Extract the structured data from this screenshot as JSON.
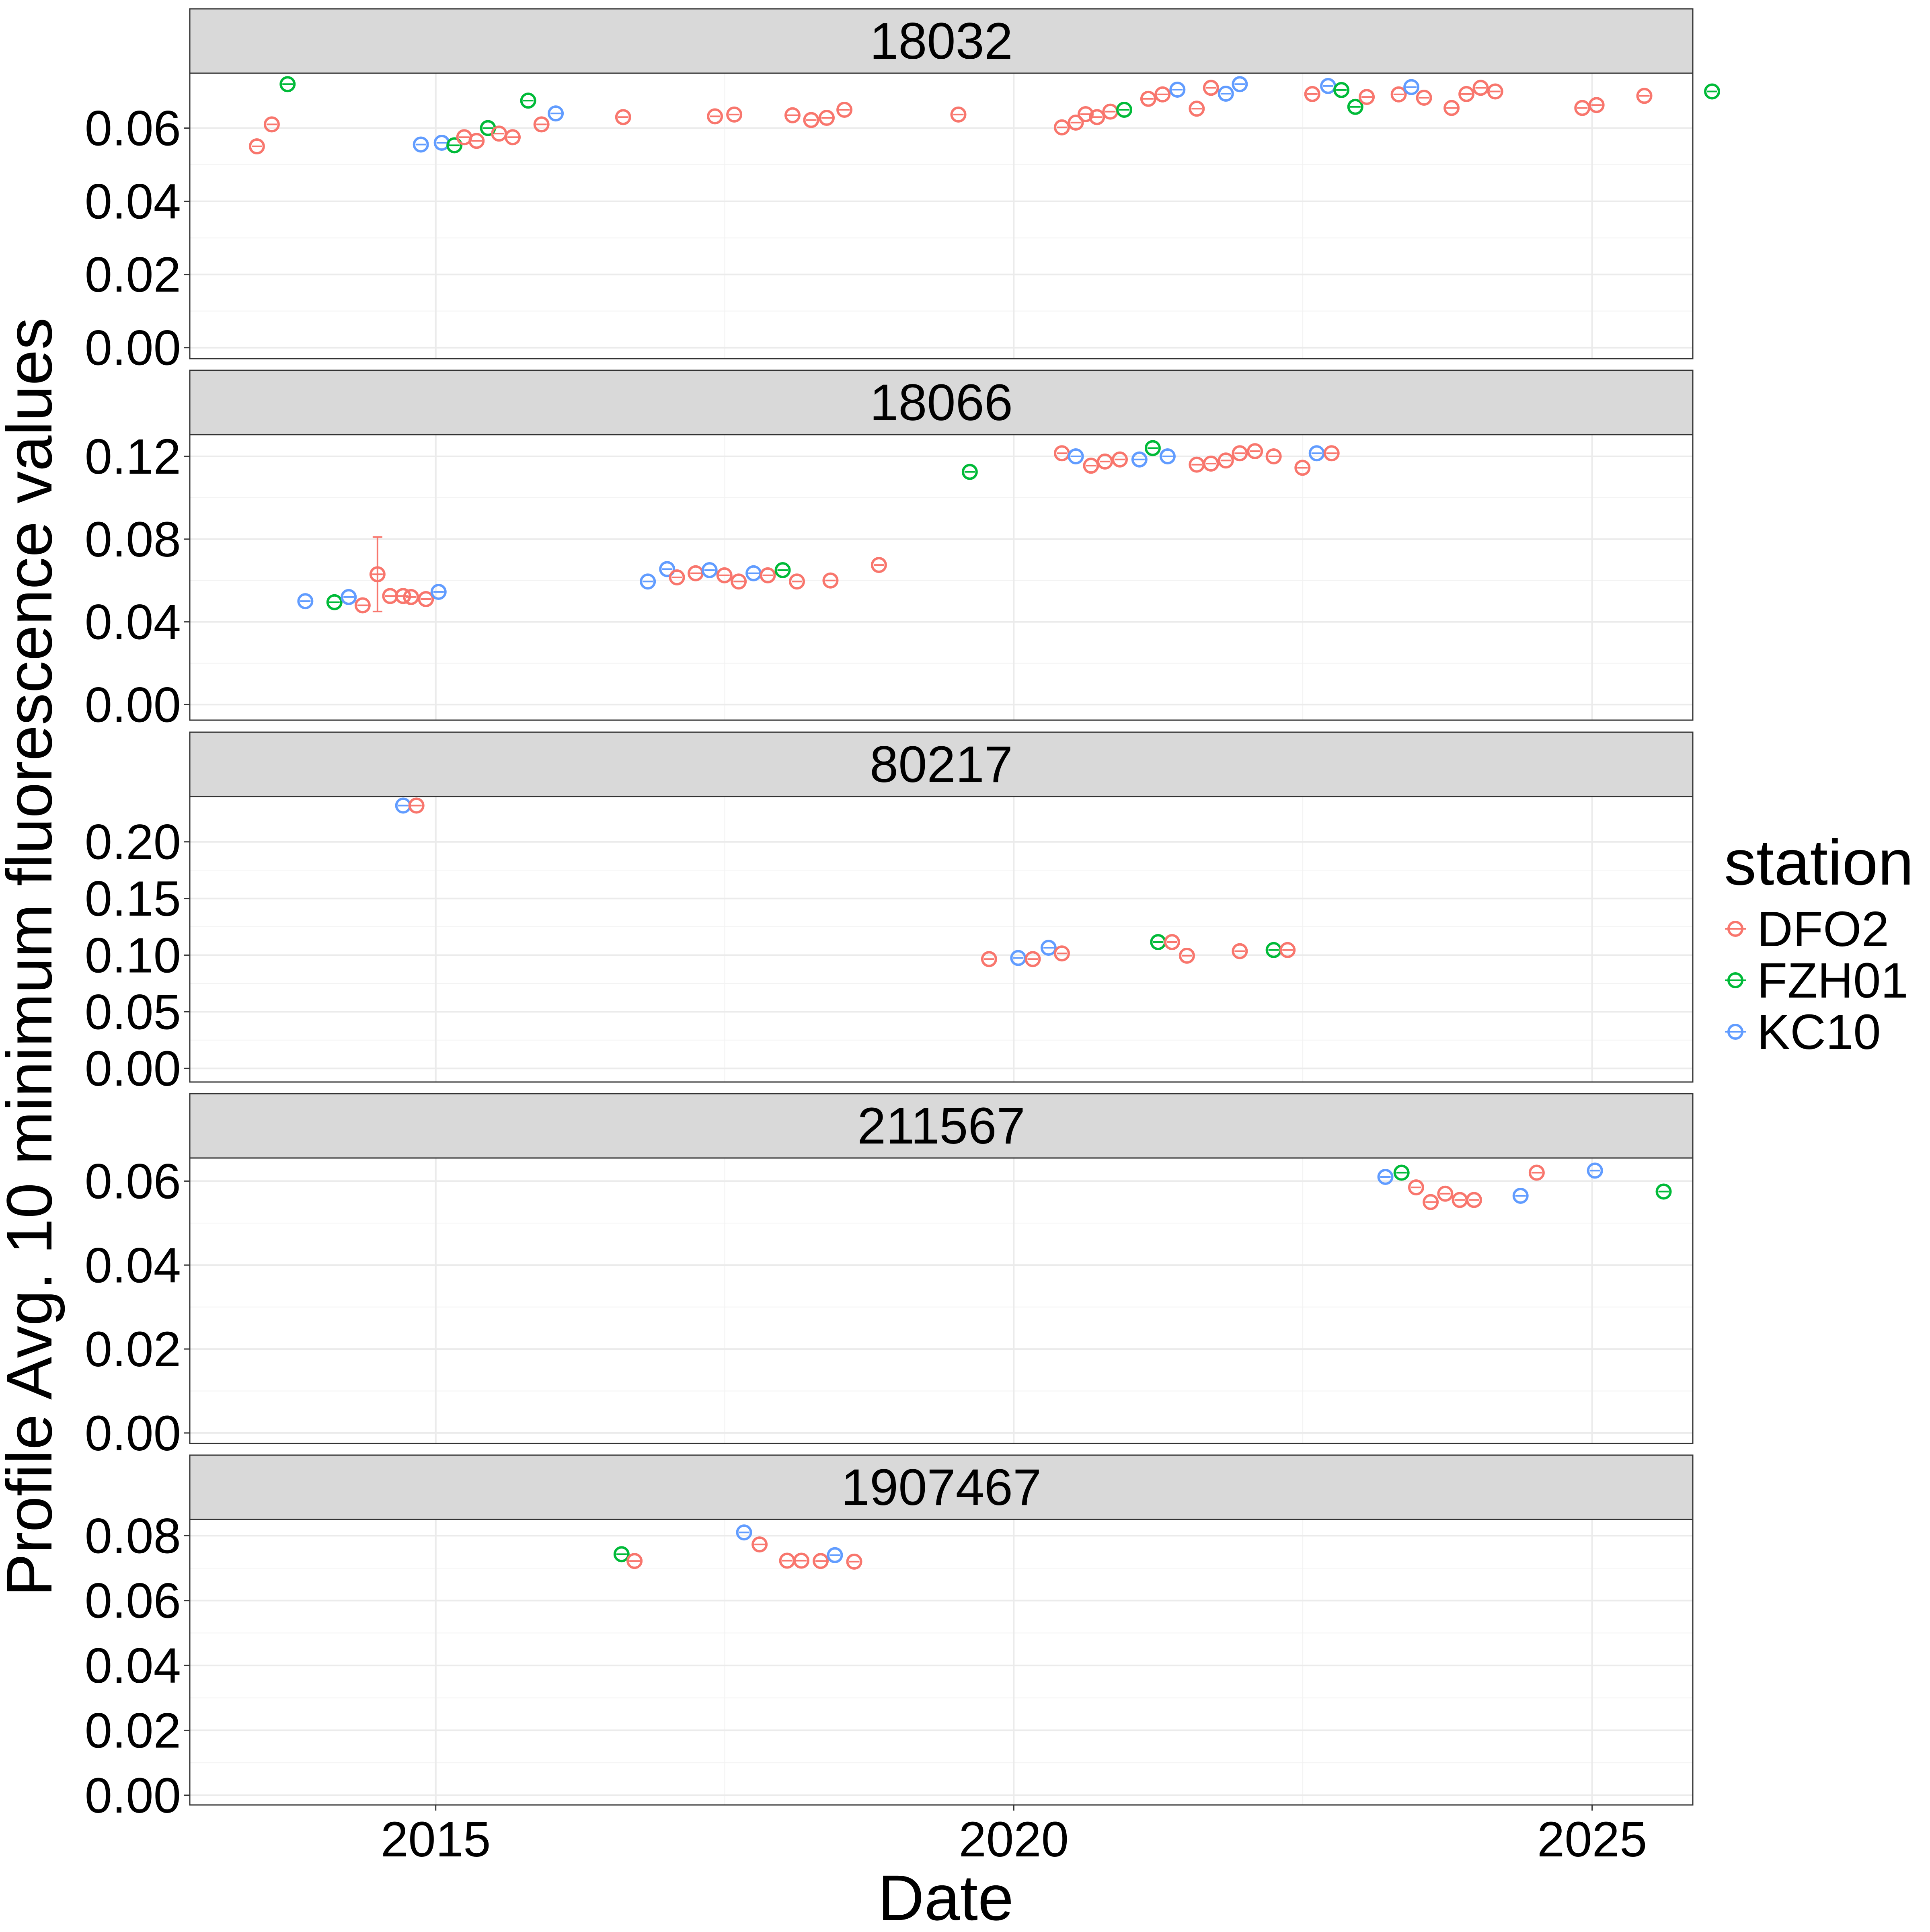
{
  "chart_data": {
    "type": "scatter",
    "xlabel": "Date",
    "ylabel": "Profile Avg. 10 minimum fluorescence values",
    "legend": {
      "title": "station",
      "placement": "right"
    },
    "series": [
      {
        "name": "DFO2",
        "color": "#F8766D"
      },
      {
        "name": "FZH01",
        "color": "#00BA38"
      },
      {
        "name": "KC10",
        "color": "#619CFF"
      }
    ],
    "x_axis": {
      "min": "2012-11-15",
      "max": "2025-11-15",
      "ticks": [
        "2015-01-01",
        "2020-01-01",
        "2025-01-01"
      ],
      "tick_labels": [
        "2015",
        "2020",
        "2025"
      ]
    },
    "grid": true,
    "panels": [
      {
        "title": "18032",
        "ylim": [
          -0.003,
          0.075
        ],
        "yticks": [
          0.0,
          0.02,
          0.04,
          0.06
        ],
        "ytick_labels": [
          "0.00",
          "0.02",
          "0.04",
          "0.06"
        ],
        "points": [
          {
            "station": "DFO2",
            "date": "2013-06-15",
            "y": 0.055
          },
          {
            "station": "DFO2",
            "date": "2013-08-01",
            "y": 0.061
          },
          {
            "station": "FZH01",
            "date": "2013-09-20",
            "y": 0.072
          },
          {
            "station": "KC10",
            "date": "2014-11-15",
            "y": 0.0555
          },
          {
            "station": "KC10",
            "date": "2015-01-20",
            "y": 0.056
          },
          {
            "station": "FZH01",
            "date": "2015-03-01",
            "y": 0.0553
          },
          {
            "station": "DFO2",
            "date": "2015-04-01",
            "y": 0.0575
          },
          {
            "station": "DFO2",
            "date": "2015-05-10",
            "y": 0.0565
          },
          {
            "station": "FZH01",
            "date": "2015-06-15",
            "y": 0.06
          },
          {
            "station": "DFO2",
            "date": "2015-07-20",
            "y": 0.0585
          },
          {
            "station": "DFO2",
            "date": "2015-09-01",
            "y": 0.0575
          },
          {
            "station": "FZH01",
            "date": "2015-10-20",
            "y": 0.0675
          },
          {
            "station": "DFO2",
            "date": "2015-12-01",
            "y": 0.061
          },
          {
            "station": "KC10",
            "date": "2016-01-15",
            "y": 0.064
          },
          {
            "station": "DFO2",
            "date": "2016-08-15",
            "y": 0.063
          },
          {
            "station": "DFO2",
            "date": "2017-06-01",
            "y": 0.0632
          },
          {
            "station": "DFO2",
            "date": "2017-08-01",
            "y": 0.0637
          },
          {
            "station": "DFO2",
            "date": "2018-02-01",
            "y": 0.0635
          },
          {
            "station": "DFO2",
            "date": "2018-04-01",
            "y": 0.0622
          },
          {
            "station": "DFO2",
            "date": "2018-05-20",
            "y": 0.0628
          },
          {
            "station": "DFO2",
            "date": "2018-07-15",
            "y": 0.065
          },
          {
            "station": "DFO2",
            "date": "2019-07-10",
            "y": 0.0637
          },
          {
            "station": "DFO2",
            "date": "2020-06-01",
            "y": 0.0602
          },
          {
            "station": "DFO2",
            "date": "2020-07-15",
            "y": 0.0615
          },
          {
            "station": "DFO2",
            "date": "2020-08-15",
            "y": 0.0638
          },
          {
            "station": "DFO2",
            "date": "2020-09-20",
            "y": 0.063
          },
          {
            "station": "DFO2",
            "date": "2020-11-01",
            "y": 0.0645
          },
          {
            "station": "FZH01",
            "date": "2020-12-15",
            "y": 0.065
          },
          {
            "station": "DFO2",
            "date": "2021-03-01",
            "y": 0.068
          },
          {
            "station": "DFO2",
            "date": "2021-04-15",
            "y": 0.0692
          },
          {
            "station": "KC10",
            "date": "2021-06-01",
            "y": 0.0705
          },
          {
            "station": "DFO2",
            "date": "2021-08-01",
            "y": 0.0653
          },
          {
            "station": "DFO2",
            "date": "2021-09-15",
            "y": 0.071
          },
          {
            "station": "KC10",
            "date": "2021-11-01",
            "y": 0.0694
          },
          {
            "station": "KC10",
            "date": "2021-12-15",
            "y": 0.072
          },
          {
            "station": "DFO2",
            "date": "2022-08-01",
            "y": 0.0693
          },
          {
            "station": "KC10",
            "date": "2022-09-20",
            "y": 0.0715
          },
          {
            "station": "FZH01",
            "date": "2022-11-01",
            "y": 0.0704
          },
          {
            "station": "FZH01",
            "date": "2022-12-15",
            "y": 0.0658
          },
          {
            "station": "DFO2",
            "date": "2023-01-20",
            "y": 0.0685
          },
          {
            "station": "DFO2",
            "date": "2023-05-01",
            "y": 0.0692
          },
          {
            "station": "KC10",
            "date": "2023-06-10",
            "y": 0.0712
          },
          {
            "station": "DFO2",
            "date": "2023-07-20",
            "y": 0.0683
          },
          {
            "station": "DFO2",
            "date": "2023-10-15",
            "y": 0.0655
          },
          {
            "station": "DFO2",
            "date": "2023-12-01",
            "y": 0.0693
          },
          {
            "station": "DFO2",
            "date": "2024-01-15",
            "y": 0.071
          },
          {
            "station": "DFO2",
            "date": "2024-03-01",
            "y": 0.07
          },
          {
            "station": "DFO2",
            "date": "2024-12-01",
            "y": 0.0655
          },
          {
            "station": "DFO2",
            "date": "2025-01-15",
            "y": 0.0663
          },
          {
            "station": "DFO2",
            "date": "2025-06-15",
            "y": 0.0688
          },
          {
            "station": "FZH01",
            "date": "2026-01-15",
            "y": 0.07
          }
        ]
      },
      {
        "title": "18066",
        "ylim": [
          -0.0075,
          0.1305
        ],
        "yticks": [
          0.0,
          0.04,
          0.08,
          0.12
        ],
        "ytick_labels": [
          "0.00",
          "0.04",
          "0.08",
          "0.12"
        ],
        "points": [
          {
            "station": "KC10",
            "date": "2013-11-15",
            "y": 0.05
          },
          {
            "station": "FZH01",
            "date": "2014-02-15",
            "y": 0.0495
          },
          {
            "station": "KC10",
            "date": "2014-04-01",
            "y": 0.052
          },
          {
            "station": "DFO2",
            "date": "2014-05-15",
            "y": 0.048
          },
          {
            "station": "DFO2",
            "date": "2014-07-01",
            "y": 0.063,
            "err": [
              0.045,
              0.081
            ]
          },
          {
            "station": "DFO2",
            "date": "2014-08-10",
            "y": 0.0525
          },
          {
            "station": "DFO2",
            "date": "2014-09-20",
            "y": 0.0525
          },
          {
            "station": "DFO2",
            "date": "2014-10-15",
            "y": 0.052
          },
          {
            "station": "DFO2",
            "date": "2014-12-01",
            "y": 0.051
          },
          {
            "station": "KC10",
            "date": "2015-01-10",
            "y": 0.0545
          },
          {
            "station": "KC10",
            "date": "2016-11-01",
            "y": 0.0595
          },
          {
            "station": "KC10",
            "date": "2017-01-01",
            "y": 0.0655
          },
          {
            "station": "DFO2",
            "date": "2017-02-01",
            "y": 0.0615
          },
          {
            "station": "DFO2",
            "date": "2017-04-01",
            "y": 0.0635
          },
          {
            "station": "KC10",
            "date": "2017-05-15",
            "y": 0.065
          },
          {
            "station": "DFO2",
            "date": "2017-07-01",
            "y": 0.0625
          },
          {
            "station": "DFO2",
            "date": "2017-08-15",
            "y": 0.0595
          },
          {
            "station": "KC10",
            "date": "2017-10-01",
            "y": 0.0635
          },
          {
            "station": "DFO2",
            "date": "2017-11-15",
            "y": 0.0625
          },
          {
            "station": "FZH01",
            "date": "2018-01-01",
            "y": 0.065
          },
          {
            "station": "DFO2",
            "date": "2018-02-15",
            "y": 0.0595
          },
          {
            "station": "DFO2",
            "date": "2018-06-01",
            "y": 0.06
          },
          {
            "station": "DFO2",
            "date": "2018-11-01",
            "y": 0.0675
          },
          {
            "station": "FZH01",
            "date": "2019-08-15",
            "y": 0.1125
          },
          {
            "station": "DFO2",
            "date": "2020-06-01",
            "y": 0.1215
          },
          {
            "station": "KC10",
            "date": "2020-07-15",
            "y": 0.12
          },
          {
            "station": "DFO2",
            "date": "2020-09-01",
            "y": 0.1155
          },
          {
            "station": "DFO2",
            "date": "2020-10-15",
            "y": 0.1175
          },
          {
            "station": "DFO2",
            "date": "2020-12-01",
            "y": 0.1185
          },
          {
            "station": "KC10",
            "date": "2021-02-01",
            "y": 0.1185
          },
          {
            "station": "FZH01",
            "date": "2021-03-15",
            "y": 0.124
          },
          {
            "station": "KC10",
            "date": "2021-05-01",
            "y": 0.12
          },
          {
            "station": "DFO2",
            "date": "2021-08-01",
            "y": 0.116
          },
          {
            "station": "DFO2",
            "date": "2021-09-15",
            "y": 0.1165
          },
          {
            "station": "DFO2",
            "date": "2021-11-01",
            "y": 0.118
          },
          {
            "station": "DFO2",
            "date": "2021-12-15",
            "y": 0.1215
          },
          {
            "station": "DFO2",
            "date": "2022-02-01",
            "y": 0.1225
          },
          {
            "station": "DFO2",
            "date": "2022-04-01",
            "y": 0.12
          },
          {
            "station": "DFO2",
            "date": "2022-07-01",
            "y": 0.1145
          },
          {
            "station": "KC10",
            "date": "2022-08-15",
            "y": 0.1215
          },
          {
            "station": "DFO2",
            "date": "2022-10-01",
            "y": 0.1215
          }
        ]
      },
      {
        "title": "80217",
        "ylim": [
          -0.012,
          0.24
        ],
        "yticks": [
          0.0,
          0.05,
          0.1,
          0.15,
          0.2
        ],
        "ytick_labels": [
          "0.00",
          "0.05",
          "0.10",
          "0.15",
          "0.20"
        ],
        "points": [
          {
            "station": "KC10",
            "date": "2014-09-20",
            "y": 0.232
          },
          {
            "station": "DFO2",
            "date": "2014-11-01",
            "y": 0.232
          },
          {
            "station": "DFO2",
            "date": "2019-10-15",
            "y": 0.0965
          },
          {
            "station": "KC10",
            "date": "2020-01-15",
            "y": 0.0975
          },
          {
            "station": "DFO2",
            "date": "2020-03-01",
            "y": 0.0965
          },
          {
            "station": "KC10",
            "date": "2020-04-20",
            "y": 0.1065
          },
          {
            "station": "DFO2",
            "date": "2020-06-01",
            "y": 0.1015
          },
          {
            "station": "FZH01",
            "date": "2021-04-01",
            "y": 0.1115
          },
          {
            "station": "DFO2",
            "date": "2021-05-15",
            "y": 0.1115
          },
          {
            "station": "DFO2",
            "date": "2021-07-01",
            "y": 0.0995
          },
          {
            "station": "DFO2",
            "date": "2021-12-15",
            "y": 0.1035
          },
          {
            "station": "FZH01",
            "date": "2022-04-01",
            "y": 0.1045
          },
          {
            "station": "DFO2",
            "date": "2022-05-15",
            "y": 0.1045
          }
        ]
      },
      {
        "title": "211567",
        "ylim": [
          -0.0025,
          0.0655
        ],
        "yticks": [
          0.0,
          0.02,
          0.04,
          0.06
        ],
        "ytick_labels": [
          "0.00",
          "0.02",
          "0.04",
          "0.06"
        ],
        "points": [
          {
            "station": "KC10",
            "date": "2023-03-20",
            "y": 0.061
          },
          {
            "station": "FZH01",
            "date": "2023-05-10",
            "y": 0.062
          },
          {
            "station": "DFO2",
            "date": "2023-06-25",
            "y": 0.0585
          },
          {
            "station": "DFO2",
            "date": "2023-08-10",
            "y": 0.055
          },
          {
            "station": "DFO2",
            "date": "2023-09-25",
            "y": 0.057
          },
          {
            "station": "DFO2",
            "date": "2023-11-10",
            "y": 0.0555
          },
          {
            "station": "DFO2",
            "date": "2023-12-25",
            "y": 0.0555
          },
          {
            "station": "KC10",
            "date": "2024-05-20",
            "y": 0.0565
          },
          {
            "station": "DFO2",
            "date": "2024-07-10",
            "y": 0.062
          },
          {
            "station": "KC10",
            "date": "2025-01-10",
            "y": 0.0625
          },
          {
            "station": "FZH01",
            "date": "2025-08-15",
            "y": 0.0575
          }
        ]
      },
      {
        "title": "1907467",
        "ylim": [
          -0.003,
          0.085
        ],
        "yticks": [
          0.0,
          0.02,
          0.04,
          0.06,
          0.08
        ],
        "ytick_labels": [
          "0.00",
          "0.02",
          "0.04",
          "0.06",
          "0.08"
        ],
        "points": [
          {
            "station": "FZH01",
            "date": "2016-08-10",
            "y": 0.0743
          },
          {
            "station": "DFO2",
            "date": "2016-09-20",
            "y": 0.0722
          },
          {
            "station": "KC10",
            "date": "2017-09-01",
            "y": 0.081
          },
          {
            "station": "DFO2",
            "date": "2017-10-20",
            "y": 0.0773
          },
          {
            "station": "DFO2",
            "date": "2018-01-15",
            "y": 0.0723
          },
          {
            "station": "DFO2",
            "date": "2018-03-01",
            "y": 0.0723
          },
          {
            "station": "DFO2",
            "date": "2018-05-01",
            "y": 0.0722
          },
          {
            "station": "KC10",
            "date": "2018-06-15",
            "y": 0.074
          },
          {
            "station": "DFO2",
            "date": "2018-08-15",
            "y": 0.072
          }
        ]
      }
    ]
  }
}
